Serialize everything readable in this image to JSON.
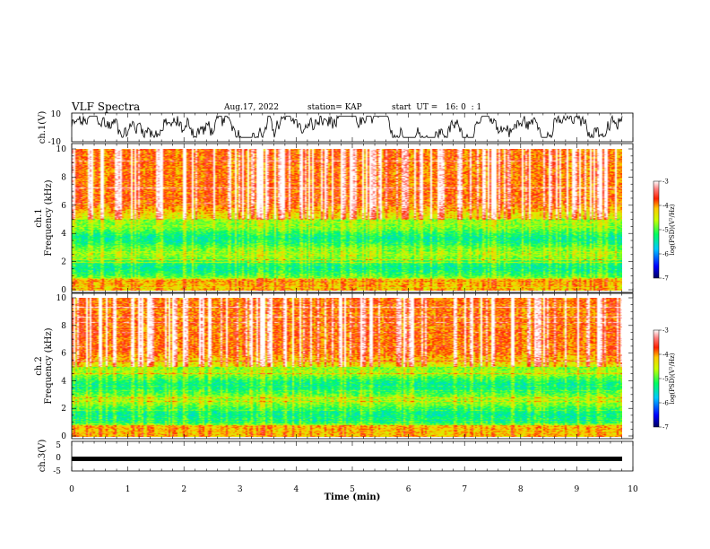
{
  "header": {
    "title": "VLF Spectra",
    "date": "Aug.17, 2022",
    "station": "station= KAP",
    "start": "start  UT =   16: 0  : 1"
  },
  "chart_data": [
    {
      "type": "line",
      "panel": "ch1-waveform",
      "ylabel": "ch.1(V)",
      "ylim": [
        -10,
        10
      ],
      "ytick_labels": [
        "-10",
        "10"
      ],
      "xlim": [
        0,
        10
      ],
      "series": [
        {
          "color": "#000000",
          "style": "noisy waveform",
          "values_range": [
            -8,
            9
          ]
        }
      ]
    },
    {
      "type": "heatmap",
      "panel": "ch1-spectrogram",
      "ylabel": "ch.1\nFrequency  (kHz)",
      "ylabel_line1": "ch.1",
      "ylabel_line2": "Frequency  (kHz)",
      "ylim": [
        0,
        10
      ],
      "ytick_labels": [
        "0",
        "2",
        "4",
        "6",
        "8",
        "10"
      ],
      "xlim": [
        0,
        9.8
      ],
      "colorbar": {
        "label": "log(PSD)(V²/Hz)",
        "range": [
          -7,
          -3
        ],
        "tick_labels": [
          "-3",
          "-4",
          "-5",
          "-6",
          "-7"
        ]
      }
    },
    {
      "type": "heatmap",
      "panel": "ch2-spectrogram",
      "ylabel": "ch.2\nFrequency  (kHz)",
      "ylabel_line1": "ch.2",
      "ylabel_line2": "Frequency  (kHz)",
      "ylim": [
        0,
        10
      ],
      "ytick_labels": [
        "0",
        "2",
        "4",
        "6",
        "8",
        "10"
      ],
      "xlim": [
        0,
        9.8
      ],
      "colorbar": {
        "label": "log(PSD)(V²/Hz)",
        "range": [
          -7,
          -3
        ],
        "tick_labels": [
          "-3",
          "-4",
          "-5",
          "-6",
          "-7"
        ]
      }
    },
    {
      "type": "line",
      "panel": "ch3-waveform",
      "ylabel": "ch.3(V)",
      "ylim": [
        -5,
        5
      ],
      "ytick_labels": [
        "-5",
        "0",
        "5"
      ],
      "xlim": [
        0,
        10
      ],
      "series": [
        {
          "color": "#000000",
          "style": "constant band",
          "values": [
            -1.2,
            -0.5
          ]
        }
      ]
    }
  ],
  "xaxis": {
    "label": "Time  (min)",
    "tick_labels": [
      "0",
      "1",
      "2",
      "3",
      "4",
      "5",
      "6",
      "7",
      "8",
      "9",
      "10"
    ]
  },
  "colors": {
    "scale": [
      "#000090",
      "#0000ff",
      "#00c0ff",
      "#00ff80",
      "#80ff00",
      "#ffff00",
      "#ff8000",
      "#ff0000",
      "#ffffff"
    ]
  }
}
